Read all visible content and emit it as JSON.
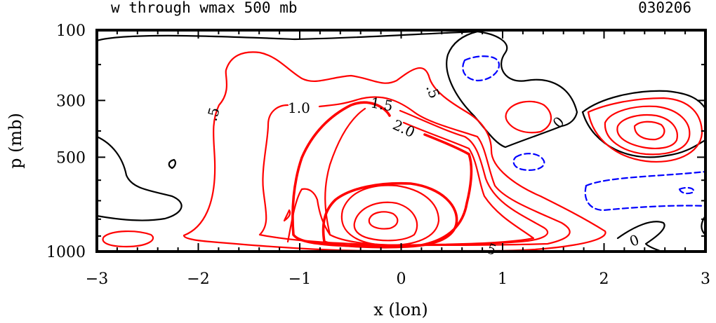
{
  "chart_data": {
    "type": "contour",
    "title": "w through wmax 500 mb",
    "date_label": "030206",
    "xlabel": "x (lon)",
    "ylabel": "p (mb)",
    "xlim": [
      -3,
      3
    ],
    "x_ticks": [
      -3,
      -2,
      -1,
      0,
      1,
      2,
      3
    ],
    "y_ticks": [
      100,
      300,
      500,
      1000
    ],
    "contour_labels": [
      ".5",
      "1.0",
      "1.5",
      "2.0",
      ".5",
      "0",
      ".5",
      "0"
    ],
    "legend": [],
    "colors": {
      "positive": "#ff0000",
      "zero": "#000000",
      "negative": "#0000ff"
    }
  }
}
